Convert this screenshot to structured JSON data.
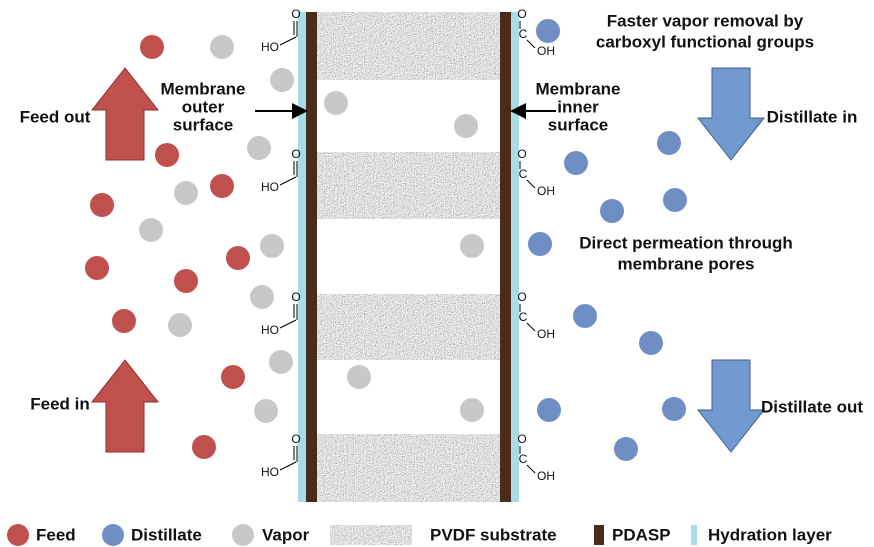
{
  "labels": {
    "feed_out": "Feed out",
    "feed_in": "Feed in",
    "outer_surface": [
      "Membrane",
      "outer",
      "surface"
    ],
    "inner_surface": [
      "Membrane",
      "inner",
      "surface"
    ],
    "vapor_removal": [
      "Faster vapor removal by",
      "carboxyl functional groups"
    ],
    "distillate_in": "Distillate in",
    "direct_permeation": [
      "Direct permeation through",
      "membrane pores"
    ],
    "distillate_out": "Distillate out"
  },
  "carboxyl": {
    "oxygen": "O",
    "carbon": "C",
    "left_hydroxyl": "HO",
    "right_hydroxyl": "OH"
  },
  "legend": {
    "feed": "Feed",
    "distillate": "Distillate",
    "vapor": "Vapor",
    "pvdf": "PVDF substrate",
    "pdasp": "PDASP",
    "hydration": "Hydration layer"
  }
}
